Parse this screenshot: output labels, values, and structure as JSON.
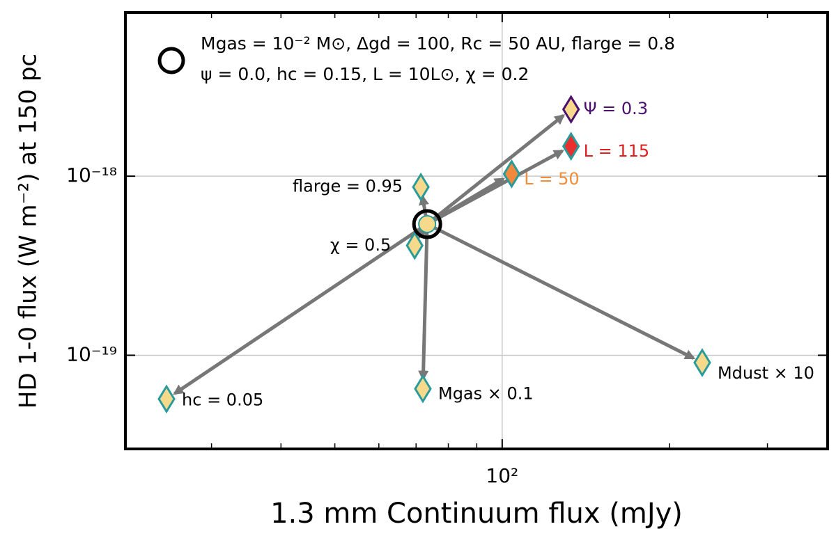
{
  "chart_data": {
    "type": "scatter",
    "xlabel": "1.3 mm Continuum flux (mJy)",
    "ylabel": "HD 1-0 flux (W m⁻²) at 150 pc",
    "xlog": true,
    "ylog": true,
    "grid": true,
    "xlim": [
      21,
      385
    ],
    "ylim": [
      3e-20,
      8.2e-18
    ],
    "xticks": [
      {
        "value": 100,
        "label": "10²"
      }
    ],
    "xminorticks": [
      30,
      40,
      50,
      60,
      70,
      80,
      90,
      200,
      300
    ],
    "yticks": [
      {
        "value": 1e-19,
        "label": "10⁻¹⁹"
      },
      {
        "value": 1e-18,
        "label": "10⁻¹⁸"
      }
    ],
    "reference": {
      "x": 73.3,
      "y": 5.4e-19,
      "legend": [
        "Mgas = 10⁻² M⊙,  Δgd = 100, Rc = 50 AU, flarge = 0.8",
        "ψ = 0.0, hc = 0.15, L = 10L⊙, χ = 0.2"
      ]
    },
    "points": [
      {
        "label": "flarge = 0.95",
        "x": 71.4,
        "y": 8.7e-19,
        "fill": "#f7d98b",
        "edge": "#2a9b9b",
        "label_color": "#000000"
      },
      {
        "label": "χ = 0.5",
        "x": 69.6,
        "y": 4.1e-19,
        "fill": "#f7d98b",
        "edge": "#2a9b9b",
        "label_color": "#000000"
      },
      {
        "label": "hc = 0.05",
        "x": 24.9,
        "y": 5.7e-20,
        "fill": "#f7d98b",
        "edge": "#2a9b9b",
        "label_color": "#000000"
      },
      {
        "label": "Mgas × 0.1",
        "x": 72,
        "y": 6.5e-20,
        "fill": "#f7d98b",
        "edge": "#2a9b9b",
        "label_color": "#000000"
      },
      {
        "label": "Mdust × 10",
        "x": 229,
        "y": 9.1e-20,
        "fill": "#f7d98b",
        "edge": "#2a9b9b",
        "label_color": "#000000"
      },
      {
        "label": "L = 50",
        "x": 104,
        "y": 1.03e-18,
        "fill": "#f0883e",
        "edge": "#2a9b9b",
        "label_color": "#f28c38"
      },
      {
        "label": "L = 115",
        "x": 133,
        "y": 1.47e-18,
        "fill": "#e8302e",
        "edge": "#2a9b9b",
        "label_color": "#e0201e"
      },
      {
        "label": "Ψ = 0.3",
        "x": 133,
        "y": 2.36e-18,
        "fill": "#f7d98b",
        "edge": "#4b0f6e",
        "label_color": "#4b0f6e"
      }
    ]
  }
}
